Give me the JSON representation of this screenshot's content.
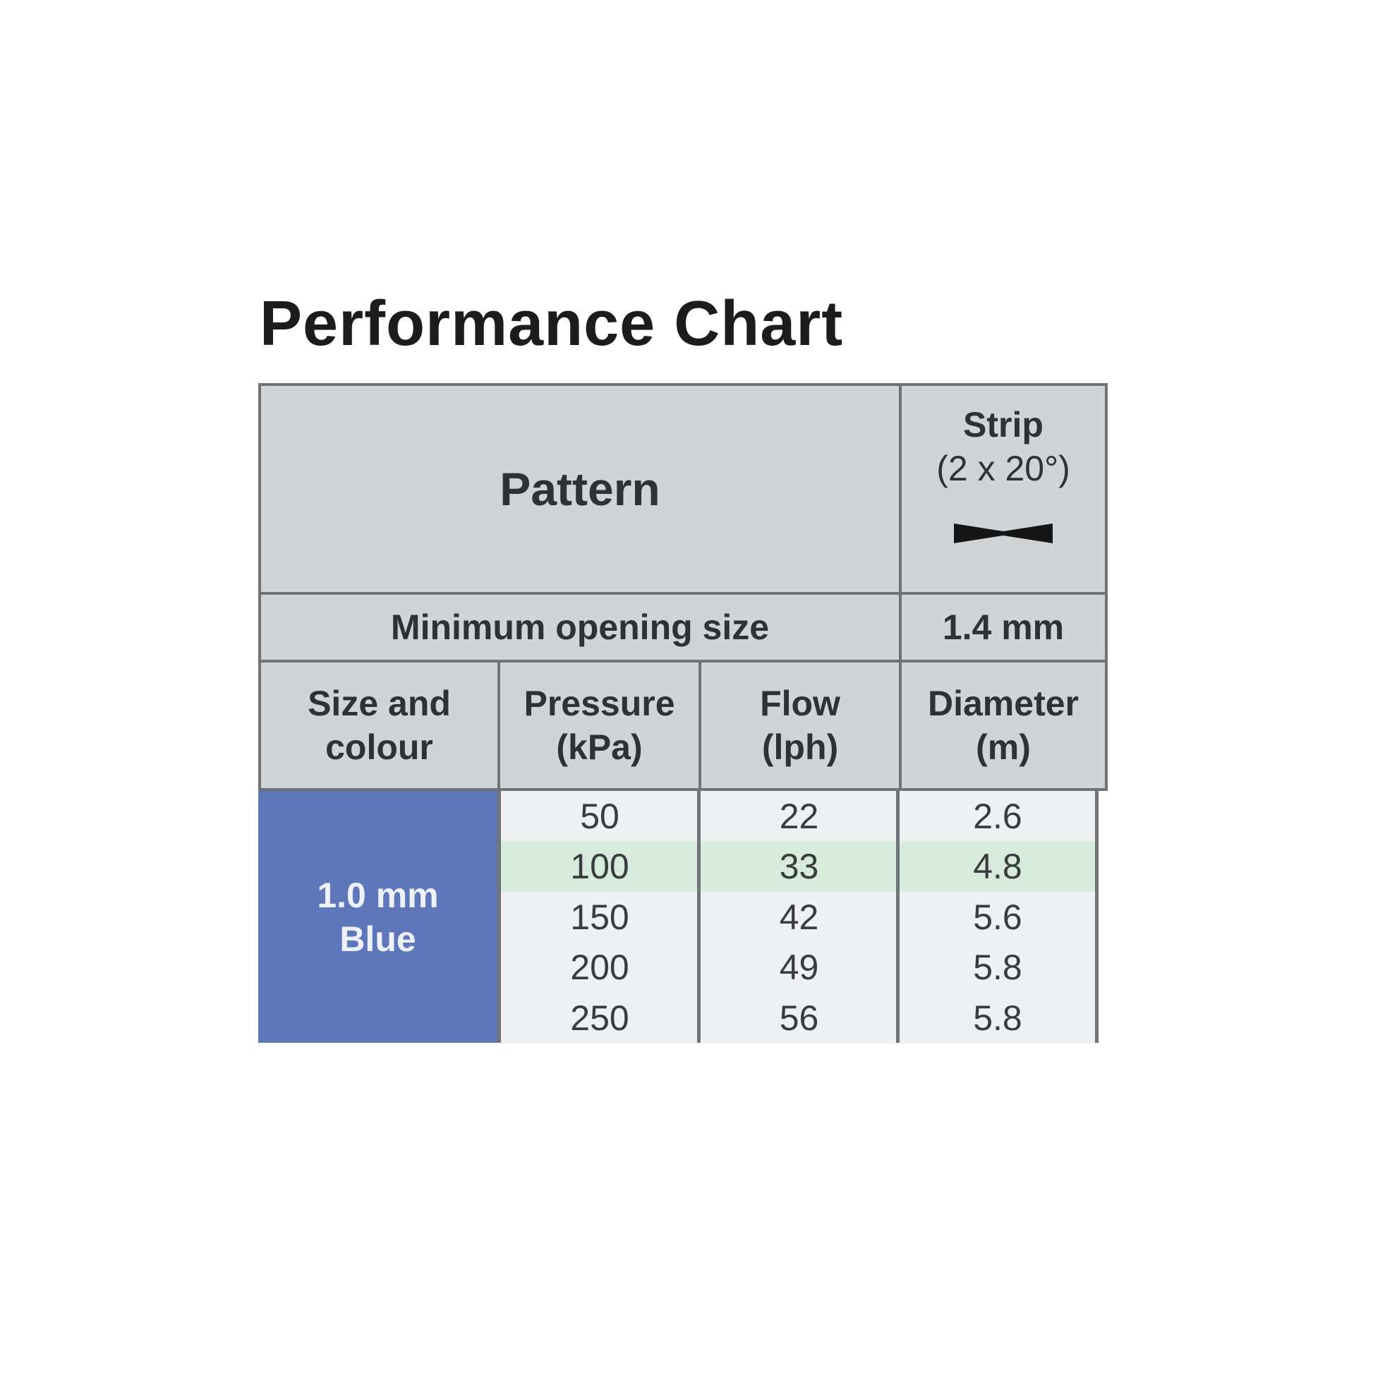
{
  "title": "Performance Chart",
  "header": {
    "pattern_label": "Pattern",
    "strip_label_line1": "Strip",
    "strip_label_line2": "(2 x 20°)",
    "strip_icon": "strip-spray-pattern-icon",
    "min_opening_label": "Minimum opening size",
    "min_opening_value": "1.4 mm"
  },
  "columns": [
    {
      "line1": "Size and",
      "line2": "colour"
    },
    {
      "line1": "Pressure",
      "line2": "(kPa)"
    },
    {
      "line1": "Flow",
      "line2": "(lph)"
    },
    {
      "line1": "Diameter",
      "line2": "(m)"
    }
  ],
  "nozzle": {
    "line1": "1.0 mm",
    "line2": "Blue",
    "color": "#5e76ba"
  },
  "highlight_color": "#d6ebdc",
  "rows": [
    {
      "pressure": "50",
      "flow": "22",
      "diameter": "2.6"
    },
    {
      "pressure": "100",
      "flow": "33",
      "diameter": "4.8",
      "highlighted": true
    },
    {
      "pressure": "150",
      "flow": "42",
      "diameter": "5.6"
    },
    {
      "pressure": "200",
      "flow": "49",
      "diameter": "5.8"
    },
    {
      "pressure": "250",
      "flow": "56",
      "diameter": "5.8"
    }
  ]
}
